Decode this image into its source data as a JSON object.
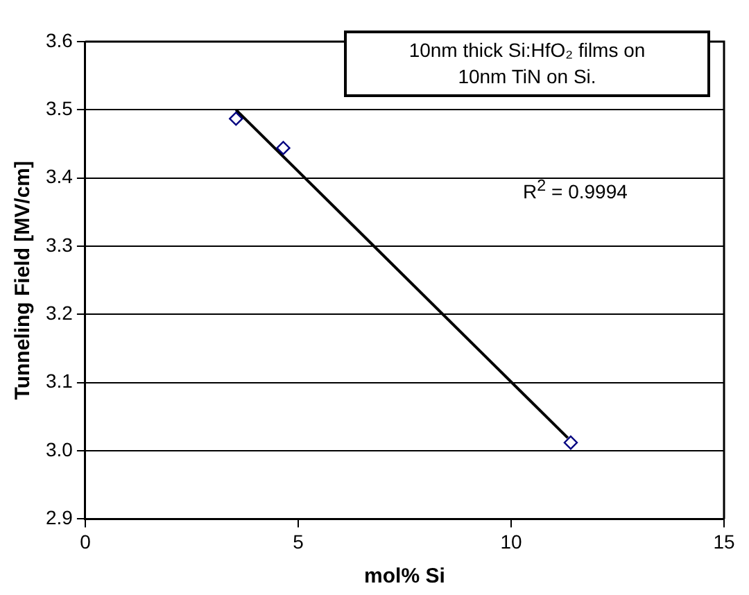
{
  "chart_data": {
    "type": "scatter",
    "xlabel": "mol% Si",
    "ylabel": "Tunneling Field [MV/cm]",
    "xlim": [
      0,
      15
    ],
    "xticks": [
      0,
      5,
      10,
      15
    ],
    "ylim": [
      2.9,
      3.6
    ],
    "yticks": [
      {
        "value": 2.9,
        "label": "2.9"
      },
      {
        "value": 3.0,
        "label": "3.0"
      },
      {
        "value": 3.1,
        "label": "3.1"
      },
      {
        "value": 3.2,
        "label": "3.2"
      },
      {
        "value": 3.3,
        "label": "3.3"
      },
      {
        "value": 3.4,
        "label": "3.4"
      },
      {
        "value": 3.5,
        "label": "3.5"
      },
      {
        "value": 3.6,
        "label": "3.6"
      }
    ],
    "grid": "y",
    "legend": false,
    "series": [
      {
        "type": "scatter",
        "color": "#000080",
        "marker": "diamond",
        "x": [
          3.54,
          4.65,
          11.4
        ],
        "values": [
          3.487,
          3.444,
          3.012
        ]
      },
      {
        "type": "line",
        "color": "#000000",
        "marker": "none",
        "line_style": "solid",
        "x": [
          3.54,
          11.33
        ],
        "values": [
          3.5,
          3.019
        ]
      }
    ],
    "annotations": [
      "10nm thick Si:HfO₂ films on 10nm TiN on Si.",
      "R$^{2}$ = 0.9994"
    ]
  }
}
